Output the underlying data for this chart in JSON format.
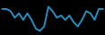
{
  "x": [
    0,
    1,
    2,
    3,
    4,
    5,
    6,
    7,
    8,
    9,
    10,
    11,
    12,
    13,
    14,
    15,
    16,
    17,
    18,
    19,
    20,
    21,
    22,
    23,
    24
  ],
  "y": [
    28,
    28,
    26,
    20,
    24,
    18,
    24,
    18,
    10,
    8,
    12,
    30,
    26,
    20,
    22,
    18,
    22,
    16,
    12,
    18,
    26,
    24,
    18,
    28,
    28
  ],
  "line_color": "#2090c0",
  "line_width": 1.4,
  "background_color": "#000000"
}
